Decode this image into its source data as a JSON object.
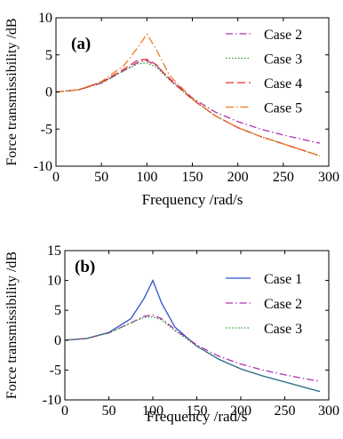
{
  "chart_data": [
    {
      "type": "line",
      "panel_label": "(a)",
      "xlabel": "Frequency /rad/s",
      "ylabel": "Force transmissibility /dB",
      "xlim": [
        0,
        300
      ],
      "ylim": [
        -10,
        10
      ],
      "xticks": [
        "0",
        "50",
        "100",
        "150",
        "200",
        "250",
        "300"
      ],
      "yticks": [
        "-10",
        "-5",
        "0",
        "5",
        "10"
      ],
      "grid": false,
      "legend_position": "top-right",
      "x": [
        0,
        25,
        50,
        75,
        90,
        100,
        110,
        125,
        150,
        175,
        200,
        225,
        250,
        275,
        290
      ],
      "series": [
        {
          "name": "Case 2",
          "color": "#b030b0",
          "dash": "8,3,1.5,3",
          "values": [
            0.0,
            0.3,
            1.2,
            2.9,
            4.0,
            4.2,
            3.6,
            1.8,
            -0.8,
            -2.7,
            -4.0,
            -5.0,
            -5.8,
            -6.5,
            -6.9
          ]
        },
        {
          "name": "Case 3",
          "color": "#2a9a2a",
          "dash": "1.5,2",
          "values": [
            0.0,
            0.3,
            1.2,
            2.9,
            3.8,
            3.9,
            3.4,
            1.6,
            -1.0,
            -3.2,
            -4.8,
            -6.0,
            -7.0,
            -8.0,
            -8.6
          ]
        },
        {
          "name": "Case 4",
          "color": "#e03030",
          "dash": "9,4",
          "values": [
            0.0,
            0.3,
            1.3,
            3.1,
            4.3,
            4.4,
            3.7,
            1.7,
            -1.0,
            -3.2,
            -4.8,
            -6.0,
            -7.0,
            -8.0,
            -8.6
          ]
        },
        {
          "name": "Case 5",
          "color": "#f07a20",
          "dash": "9,3,1.5,3",
          "values": [
            0.0,
            0.3,
            1.4,
            3.6,
            6.0,
            7.8,
            5.8,
            2.2,
            -0.9,
            -3.2,
            -4.8,
            -6.0,
            -7.0,
            -8.0,
            -8.6
          ]
        }
      ]
    },
    {
      "type": "line",
      "panel_label": "(b)",
      "xlabel": "Frequency /rad/s",
      "ylabel": "Force transmissibility /dB",
      "xlim": [
        0,
        300
      ],
      "ylim": [
        -10,
        15
      ],
      "xticks": [
        "0",
        "50",
        "100",
        "150",
        "200",
        "250",
        "300"
      ],
      "yticks": [
        "-10",
        "-5",
        "0",
        "5",
        "10",
        "15"
      ],
      "grid": false,
      "legend_position": "top-right",
      "x": [
        0,
        25,
        50,
        75,
        90,
        100,
        110,
        125,
        150,
        175,
        200,
        225,
        250,
        275,
        290
      ],
      "series": [
        {
          "name": "Case 1",
          "color": "#2f52c8",
          "dash": "",
          "values": [
            0.0,
            0.3,
            1.3,
            3.6,
            7.0,
            10.0,
            6.2,
            2.2,
            -1.0,
            -3.2,
            -4.8,
            -6.0,
            -7.0,
            -8.0,
            -8.6
          ]
        },
        {
          "name": "Case 2",
          "color": "#b030b0",
          "dash": "8,3,1.5,3",
          "values": [
            0.0,
            0.3,
            1.2,
            2.9,
            4.0,
            4.2,
            3.6,
            1.8,
            -0.8,
            -2.7,
            -4.0,
            -5.0,
            -5.8,
            -6.5,
            -6.9
          ]
        },
        {
          "name": "Case 3",
          "color": "#2a9a2a",
          "dash": "1.5,2",
          "values": [
            0.0,
            0.3,
            1.2,
            2.9,
            3.8,
            3.9,
            3.4,
            1.6,
            -1.0,
            -3.2,
            -4.8,
            -6.0,
            -7.0,
            -8.0,
            -8.6
          ]
        }
      ]
    }
  ]
}
